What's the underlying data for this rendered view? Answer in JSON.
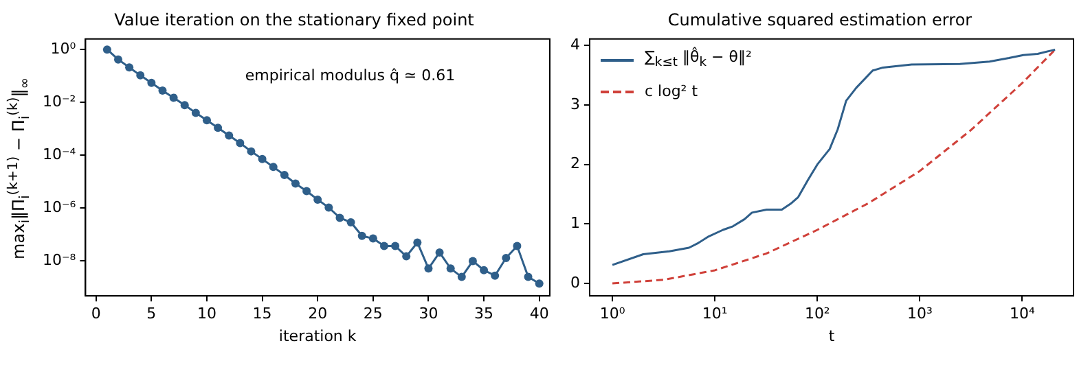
{
  "chart_data": [
    {
      "type": "line",
      "title": "Value iteration on the stationary fixed point",
      "xlabel": "iteration k",
      "ylabel": "max$_{i}$‖Π$_{i}$$^{(k+1)}$ − Π$_{i}$$^{(k)}$‖$_{∞}$",
      "annotations": [
        "empirical modulus q̂ ≃ 0.61"
      ],
      "x": [
        1,
        2,
        3,
        4,
        5,
        6,
        7,
        8,
        9,
        10,
        11,
        12,
        13,
        14,
        15,
        16,
        17,
        18,
        19,
        20,
        21,
        22,
        23,
        24,
        25,
        26,
        27,
        28,
        29,
        30,
        31,
        32,
        33,
        34,
        35,
        36,
        37,
        38,
        39,
        40
      ],
      "series": [
        {
          "color": "#2f5f8a",
          "values": [
            1,
            0.42,
            0.21,
            0.105,
            0.055,
            0.028,
            0.015,
            0.0079,
            0.004,
            0.0021,
            0.0011,
            0.00056,
            0.00029,
            0.00014,
            7.2e-05,
            3.6e-05,
            1.8e-05,
            8.5e-06,
            4.4e-06,
            2.1e-06,
            1.05e-06,
            4.3e-07,
            2.9e-07,
            8.9e-08,
            7.1e-08,
            3.7e-08,
            3.7e-08,
            1.5e-08,
            5e-08,
            5.2e-09,
            2.1e-08,
            5.2e-09,
            2.5e-09,
            1e-08,
            4.5e-09,
            2.8e-09,
            1.3e-08,
            3.7e-08,
            2.5e-09,
            1.4e-09
          ]
        }
      ],
      "log": "y",
      "marker": "circle",
      "grid": false,
      "legend": false,
      "xlim": [
        -0.95,
        40.95
      ],
      "xticks": [
        0,
        5,
        10,
        15,
        20,
        25,
        30,
        35,
        40
      ],
      "ylim": [
        4.8e-10,
        2.5
      ],
      "yticks": [
        {
          "value": 1,
          "label": "10⁰"
        },
        {
          "value": 0.01,
          "label": "10⁻²"
        },
        {
          "value": 0.0001,
          "label": "10⁻⁴"
        },
        {
          "value": 1e-06,
          "label": "10⁻⁶"
        },
        {
          "value": 1e-08,
          "label": "10⁻⁸"
        }
      ]
    },
    {
      "type": "line",
      "title": "Cumulative squared estimation error",
      "xlabel": "t",
      "log": "x",
      "marker": "none",
      "grid": false,
      "legend": "top left",
      "series": [
        {
          "name": "∑$_{k≤t}$ ‖θ̂$_{k}$ − θ‖²",
          "color": "#2f5f8a",
          "line_style": "solid",
          "x": [
            1,
            2,
            3.6,
            5.6,
            6.9,
            8.7,
            12,
            15,
            19.5,
            23,
            32,
            45,
            55,
            65,
            81,
            100,
            132,
            158,
            191,
            240,
            347,
            437,
            832,
            2455,
            4786,
            7413,
            10233,
            14125,
            18621,
            20893
          ],
          "values": [
            0.31,
            0.49,
            0.54,
            0.6,
            0.68,
            0.79,
            0.9,
            0.96,
            1.08,
            1.19,
            1.24,
            1.24,
            1.34,
            1.45,
            1.74,
            2.0,
            2.26,
            2.59,
            3.07,
            3.29,
            3.58,
            3.63,
            3.68,
            3.69,
            3.73,
            3.79,
            3.84,
            3.86,
            3.91,
            3.93
          ]
        },
        {
          "name": "c log² t",
          "color": "#d0413a",
          "line_style": "dashed",
          "x": [
            1,
            3.16,
            10,
            31.6,
            100,
            316,
            1000,
            3162,
            10000,
            20893
          ],
          "values": [
            0,
            0.06,
            0.22,
            0.5,
            0.9,
            1.35,
            1.89,
            2.58,
            3.37,
            3.93
          ]
        }
      ],
      "xlim": [
        0.61,
        31600
      ],
      "xticks": [
        {
          "value": 1,
          "label": "10⁰"
        },
        {
          "value": 10,
          "label": "10¹"
        },
        {
          "value": 100,
          "label": "10²"
        },
        {
          "value": 1000,
          "label": "10³"
        },
        {
          "value": 10000,
          "label": "10⁴"
        }
      ],
      "ylim": [
        -0.21,
        4.11
      ],
      "yticks": [
        0,
        1,
        2,
        3,
        4
      ]
    }
  ]
}
